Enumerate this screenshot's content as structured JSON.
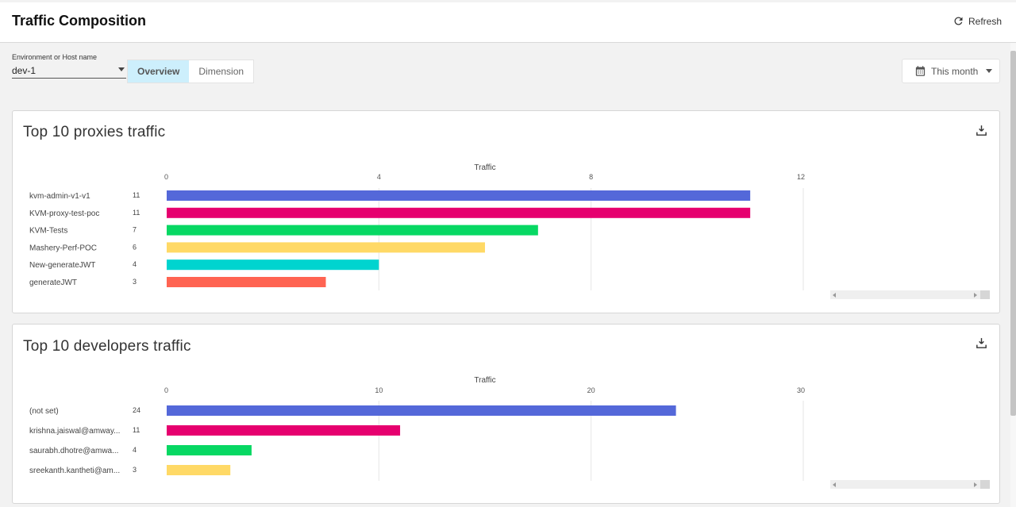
{
  "header": {
    "title": "Traffic Composition",
    "refresh_label": "Refresh"
  },
  "filters": {
    "env_label": "Environment or Host name",
    "env_value": "dev-1",
    "tabs": [
      {
        "label": "Overview",
        "active": true
      },
      {
        "label": "Dimension",
        "active": false
      }
    ],
    "date_range": "This month"
  },
  "icons": {
    "refresh": "refresh-icon",
    "calendar": "calendar-icon",
    "download": "download-icon"
  },
  "colors": {
    "series": [
      "#5468d9",
      "#e6006f",
      "#07d863",
      "#ffd966",
      "#00d4cf",
      "#ff6452"
    ]
  },
  "chart_data": [
    {
      "type": "bar",
      "orientation": "horizontal",
      "title": "Top 10 proxies traffic",
      "xlabel": "Traffic",
      "xlim": [
        0,
        12
      ],
      "xticks": [
        0,
        4,
        8,
        12
      ],
      "categories": [
        "kvm-admin-v1-v1",
        "KVM-proxy-test-poc",
        "KVM-Tests",
        "Mashery-Perf-POC",
        "New-generateJWT",
        "generateJWT"
      ],
      "values": [
        11,
        11,
        7,
        6,
        4,
        3
      ],
      "grid": true
    },
    {
      "type": "bar",
      "orientation": "horizontal",
      "title": "Top 10 developers traffic",
      "xlabel": "Traffic",
      "xlim": [
        0,
        30
      ],
      "xticks": [
        0,
        10,
        20,
        30
      ],
      "categories": [
        "(not set)",
        "krishna.jaiswal@amway...",
        "saurabh.dhotre@amwa...",
        "sreekanth.kantheti@am..."
      ],
      "values": [
        24,
        11,
        4,
        3
      ],
      "grid": true
    }
  ]
}
